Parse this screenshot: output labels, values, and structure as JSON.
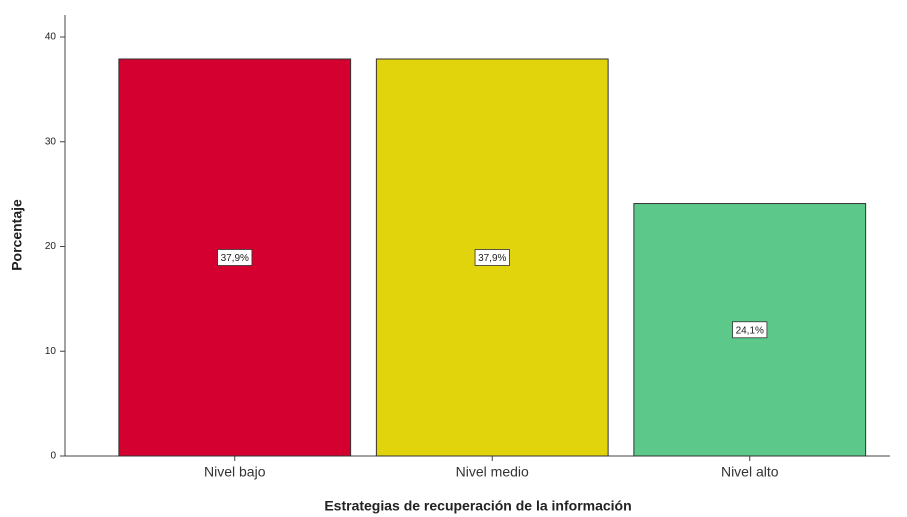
{
  "chart_data": {
    "type": "bar",
    "x_label": "Estrategias de recuperación de la información",
    "y_label": "Porcentaje",
    "categories": [
      "Nivel bajo",
      "Nivel medio",
      "Nivel alto"
    ],
    "values": [
      37.9,
      37.9,
      24.1
    ],
    "value_labels": [
      "37,9%",
      "37,9%",
      "24,1%"
    ],
    "colors": [
      "#d40030",
      "#e2d40c",
      "#5cc88a"
    ],
    "ylim": [
      0,
      42.1
    ],
    "yticks": [
      0,
      10,
      20,
      30,
      40
    ],
    "grid": false
  }
}
